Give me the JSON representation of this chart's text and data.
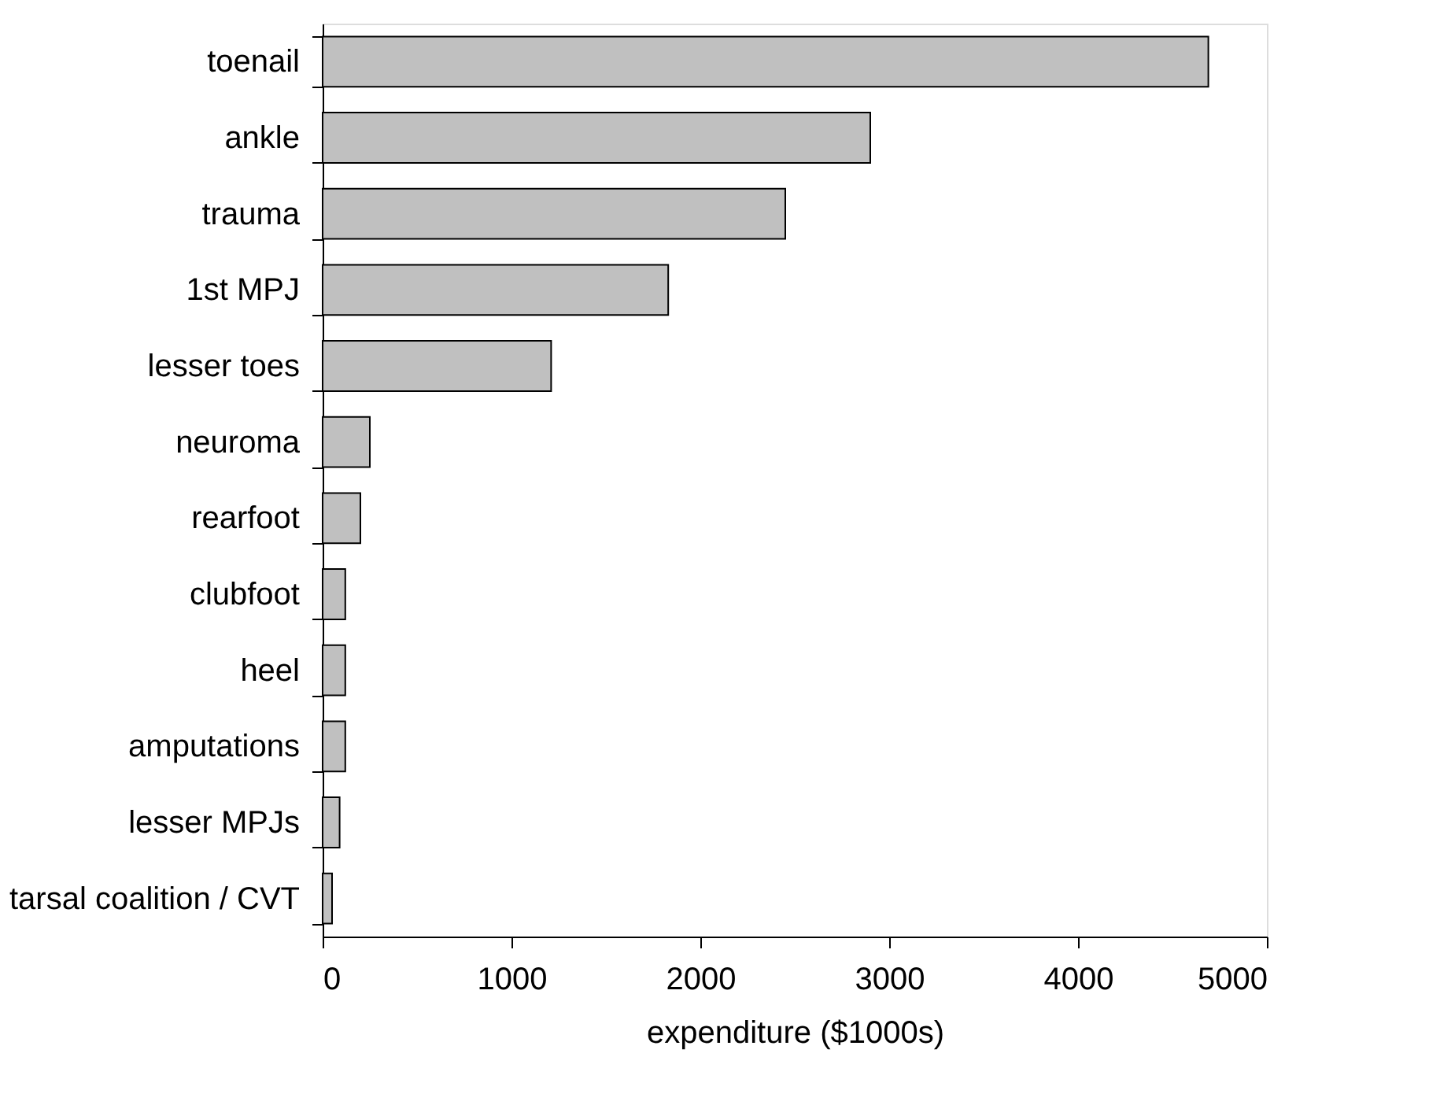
{
  "chart_data": {
    "type": "bar",
    "orientation": "horizontal",
    "categories": [
      "toenail",
      "ankle",
      "trauma",
      "1st MPJ",
      "lesser toes",
      "neuroma",
      "rearfoot",
      "clubfoot",
      "heel",
      "amputations",
      "lesser MPJs",
      "tarsal coalition / CVT"
    ],
    "values": [
      4690,
      2900,
      2450,
      1830,
      1210,
      250,
      200,
      120,
      120,
      120,
      90,
      50
    ],
    "color": "#c0c0c0",
    "xlabel": "expenditure ($1000s)",
    "xlim": [
      0,
      5000
    ],
    "xticks": [
      0,
      1000,
      2000,
      3000,
      4000,
      5000
    ],
    "grid": false
  }
}
